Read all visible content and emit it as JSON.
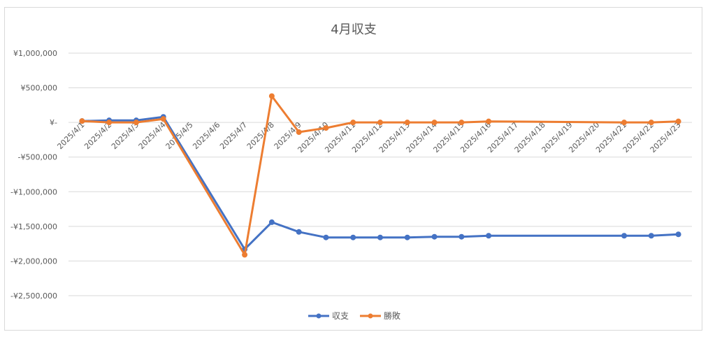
{
  "chart_data": {
    "type": "line",
    "title": "4月収支",
    "xlabel": "",
    "ylabel": "",
    "ylim": [
      -2500000,
      1000000
    ],
    "yticks": [
      1000000,
      500000,
      0,
      -500000,
      -1000000,
      -1500000,
      -2000000,
      -2500000
    ],
    "ytick_labels": [
      "¥1,000,000",
      "¥500,000",
      "¥-",
      "-¥500,000",
      "-¥1,000,000",
      "-¥1,500,000",
      "-¥2,000,000",
      "-¥2,500,000"
    ],
    "categories": [
      "2025/4/1",
      "2025/4/2",
      "2025/4/3",
      "2025/4/4",
      "2025/4/5",
      "2025/4/6",
      "2025/4/7",
      "2025/4/8",
      "2025/4/9",
      "2025/4/10",
      "2025/4/11",
      "2025/4/12",
      "2025/4/13",
      "2025/4/14",
      "2025/4/15",
      "2025/4/16",
      "2025/4/17",
      "2025/4/18",
      "2025/4/19",
      "2025/4/20",
      "2025/4/21",
      "2025/4/22",
      "2025/4/23"
    ],
    "series": [
      {
        "name": "収支",
        "color": "#4472c4",
        "values": [
          20000,
          30000,
          30000,
          80000,
          null,
          null,
          -1830000,
          -1440000,
          -1580000,
          -1660000,
          -1660000,
          -1660000,
          -1660000,
          -1650000,
          -1650000,
          -1635000,
          null,
          null,
          null,
          null,
          -1635000,
          -1635000,
          -1615000
        ]
      },
      {
        "name": "勝敗",
        "color": "#ed7d31",
        "values": [
          20000,
          0,
          0,
          50000,
          null,
          null,
          -1910000,
          380000,
          -140000,
          -80000,
          0,
          0,
          0,
          0,
          0,
          15000,
          null,
          null,
          null,
          null,
          0,
          0,
          15000
        ]
      }
    ],
    "grid": true,
    "legend_position": "bottom"
  }
}
